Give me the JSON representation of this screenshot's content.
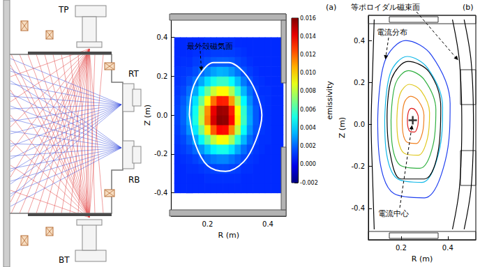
{
  "diagram": {
    "ports": [
      "TP",
      "RT",
      "RB",
      "BT"
    ]
  },
  "chart_data": [
    {
      "type": "heatmap",
      "title": "(a)",
      "xlabel": "R (m)",
      "ylabel": "Z (m)",
      "xlim": [
        0.08,
        0.46
      ],
      "ylim": [
        -0.52,
        0.52
      ],
      "xticks": [
        0.2,
        0.4
      ],
      "yticks": [
        -0.4,
        -0.2,
        {
          "value": 0,
          "label": "0.0"
        },
        0.2,
        0.4
      ],
      "cells": {
        "r": [
          0.1,
          0.12,
          0.14,
          0.16,
          0.18,
          0.2,
          0.22,
          0.24,
          0.26,
          0.28,
          0.3,
          0.32,
          0.34,
          0.36,
          0.38,
          0.4,
          0.42,
          0.44
        ],
        "z": [
          -0.375,
          -0.325,
          -0.275,
          -0.225,
          -0.175,
          -0.125,
          -0.075,
          -0.025,
          0.025,
          0.075,
          0.125,
          0.175,
          0.225,
          0.275,
          0.325,
          0.375
        ],
        "values": [
          [
            0.001,
            0.001,
            0.001,
            0.001,
            0.001,
            0.001,
            0.001,
            0.001,
            0.001,
            0.001,
            0.001,
            0.001,
            0.001,
            0.001,
            0.001,
            0.001,
            0.001,
            0.001
          ],
          [
            0.001,
            0.001,
            0.001,
            0.001,
            0.001,
            0.0011,
            0.0011,
            0.0011,
            0.0011,
            0.0011,
            0.0011,
            0.001,
            0.001,
            0.001,
            0.001,
            0.001,
            0.001,
            0.001
          ],
          [
            0.001,
            0.001,
            0.0011,
            0.0011,
            0.0012,
            0.0013,
            0.0014,
            0.0015,
            0.0015,
            0.0014,
            0.0013,
            0.0011,
            0.0011,
            0.001,
            0.001,
            0.001,
            0.001,
            0.001
          ],
          [
            0.001,
            0.0011,
            0.0012,
            0.0014,
            0.0017,
            0.0021,
            0.0024,
            0.0026,
            0.0026,
            0.0023,
            0.0019,
            0.0015,
            0.0012,
            0.0011,
            0.001,
            0.001,
            0.001,
            0.001
          ],
          [
            0.0011,
            0.0013,
            0.0016,
            0.0021,
            0.0029,
            0.0038,
            0.0046,
            0.0051,
            0.0051,
            0.0043,
            0.0032,
            0.0022,
            0.0016,
            0.0012,
            0.0011,
            0.001,
            0.001,
            0.001
          ],
          [
            0.0012,
            0.0015,
            0.0021,
            0.0032,
            0.0047,
            0.0065,
            0.0082,
            0.0092,
            0.0091,
            0.0077,
            0.0055,
            0.0035,
            0.0021,
            0.0014,
            0.0011,
            0.0011,
            0.001,
            0.001
          ],
          [
            0.0013,
            0.0018,
            0.0028,
            0.0044,
            0.0068,
            0.0096,
            0.0122,
            0.0137,
            0.0136,
            0.0114,
            0.008,
            0.0049,
            0.0028,
            0.0017,
            0.0012,
            0.0011,
            0.001,
            0.001
          ],
          [
            0.0014,
            0.002,
            0.0032,
            0.0052,
            0.0081,
            0.0115,
            0.0145,
            0.0158,
            0.0157,
            0.0137,
            0.0095,
            0.0058,
            0.0032,
            0.0018,
            0.0012,
            0.0011,
            0.001,
            0.001
          ],
          [
            0.0014,
            0.002,
            0.0031,
            0.005,
            0.0079,
            0.0112,
            0.0141,
            0.0155,
            0.0154,
            0.0133,
            0.0093,
            0.0056,
            0.0031,
            0.0018,
            0.0012,
            0.0011,
            0.001,
            0.001
          ],
          [
            0.0013,
            0.0018,
            0.0027,
            0.0043,
            0.0066,
            0.0093,
            0.0118,
            0.0133,
            0.0132,
            0.011,
            0.0077,
            0.0047,
            0.0027,
            0.0016,
            0.0012,
            0.0011,
            0.001,
            0.001
          ],
          [
            0.0012,
            0.0015,
            0.0022,
            0.0032,
            0.0048,
            0.0066,
            0.0083,
            0.0093,
            0.0093,
            0.0078,
            0.0056,
            0.0035,
            0.0022,
            0.0014,
            0.0011,
            0.0011,
            0.001,
            0.001
          ],
          [
            0.0011,
            0.0013,
            0.0017,
            0.0023,
            0.0032,
            0.0042,
            0.0051,
            0.0057,
            0.0057,
            0.0048,
            0.0036,
            0.0024,
            0.0017,
            0.0012,
            0.0011,
            0.001,
            0.001,
            0.001
          ],
          [
            0.0011,
            0.0012,
            0.0013,
            0.0016,
            0.0021,
            0.0026,
            0.0031,
            0.0034,
            0.0033,
            0.0029,
            0.0023,
            0.0017,
            0.0013,
            0.0011,
            0.001,
            0.001,
            0.001,
            0.001
          ],
          [
            0.001,
            0.0011,
            0.0011,
            0.0013,
            0.0014,
            0.0016,
            0.0018,
            0.0019,
            0.0019,
            0.0018,
            0.0015,
            0.0013,
            0.0011,
            0.001,
            0.001,
            0.001,
            0.001,
            0.001
          ],
          [
            0.001,
            0.001,
            0.001,
            0.0011,
            0.0011,
            0.0012,
            0.0013,
            0.0013,
            0.0013,
            0.0013,
            0.0012,
            0.0011,
            0.001,
            0.001,
            0.001,
            0.001,
            0.001,
            0.001
          ],
          [
            0.001,
            0.001,
            0.001,
            0.001,
            0.001,
            0.0011,
            0.0011,
            0.0011,
            0.0011,
            0.0011,
            0.001,
            0.001,
            0.001,
            0.001,
            0.001,
            0.001,
            0.001,
            0.001
          ]
        ]
      },
      "colorbar": {
        "label": "emissivity",
        "lim": [
          -0.002,
          0.016
        ],
        "ticks": [
          -0.002,
          {
            "value": 0,
            "label": "0.000"
          },
          0.002,
          0.004,
          0.006,
          0.008,
          {
            "value": 0.01,
            "label": "0.010"
          },
          0.012,
          0.014,
          0.016
        ]
      },
      "series": [
        {
          "type": "line",
          "color": "#ffffff",
          "x": [
            0.14,
            0.15,
            0.18,
            0.22,
            0.27,
            0.32,
            0.36,
            0.38,
            0.36,
            0.32,
            0.26,
            0.2,
            0.16,
            0.14
          ],
          "values": [
            0.0,
            0.13,
            0.22,
            0.27,
            0.27,
            0.22,
            0.12,
            0.0,
            -0.13,
            -0.24,
            -0.29,
            -0.26,
            -0.15,
            0.0
          ]
        }
      ],
      "annotations": [
        "最外殻磁気面"
      ]
    },
    {
      "type": "line",
      "title": "(b)",
      "xlabel": "R (m)",
      "ylabel": "Z (m)",
      "xlim": [
        0.06,
        0.52
      ],
      "ylim": [
        -0.55,
        0.52
      ],
      "xticks": [
        0.2,
        0.4
      ],
      "yticks": [
        -0.4,
        -0.2,
        {
          "value": 0,
          "label": "0.0"
        },
        0.2,
        0.4
      ],
      "series": [
        {
          "type": "line",
          "color": "#2040f0",
          "x": [
            0.1,
            0.13,
            0.22,
            0.33,
            0.41,
            0.39,
            0.3,
            0.17,
            0.11,
            0.1
          ],
          "values": [
            0.02,
            0.3,
            0.4,
            0.33,
            0.1,
            -0.17,
            -0.35,
            -0.33,
            -0.18,
            0.02
          ]
        },
        {
          "type": "line",
          "color": "#10b8e8",
          "x": [
            0.13,
            0.154,
            0.226,
            0.314,
            0.378,
            0.362,
            0.29,
            0.186,
            0.138,
            0.13
          ],
          "values": [
            0.02,
            0.244,
            0.324,
            0.268,
            0.084,
            -0.132,
            -0.276,
            -0.26,
            -0.14,
            0.02
          ]
        },
        {
          "type": "line",
          "color": "#30b040",
          "x": [
            0.157,
            0.176,
            0.231,
            0.3,
            0.349,
            0.337,
            0.281,
            0.2,
            0.163,
            0.157
          ],
          "values": [
            0.02,
            0.194,
            0.256,
            0.212,
            0.07,
            -0.098,
            -0.209,
            -0.197,
            -0.104,
            0.02
          ]
        },
        {
          "type": "line",
          "color": "#e0c820",
          "x": [
            0.182,
            0.196,
            0.236,
            0.286,
            0.322,
            0.313,
            0.273,
            0.214,
            0.187,
            0.182
          ],
          "values": [
            0.02,
            0.146,
            0.191,
            0.16,
            0.056,
            -0.066,
            -0.147,
            -0.138,
            -0.07,
            0.02
          ]
        },
        {
          "type": "line",
          "color": "#f08020",
          "x": [
            0.205,
            0.214,
            0.241,
            0.274,
            0.298,
            0.292,
            0.265,
            0.226,
            0.208,
            0.205
          ],
          "values": [
            0.02,
            0.104,
            0.134,
            0.113,
            0.044,
            -0.037,
            -0.091,
            -0.085,
            -0.04,
            0.02
          ]
        },
        {
          "type": "line",
          "color": "#e02020",
          "x": [
            0.227,
            0.232,
            0.245,
            0.262,
            0.274,
            0.271,
            0.258,
            0.238,
            0.229,
            0.227
          ],
          "values": [
            0.02,
            0.062,
            0.077,
            0.067,
            0.032,
            -0.009,
            -0.036,
            -0.033,
            -0.01,
            0.02
          ]
        },
        {
          "type": "line",
          "color": "#000000",
          "x": [
            0.14,
            0.16,
            0.23,
            0.32,
            0.37,
            0.36,
            0.3,
            0.2,
            0.15,
            0.14
          ],
          "values": [
            0.04,
            0.22,
            0.3,
            0.25,
            0.08,
            -0.12,
            -0.26,
            -0.26,
            -0.12,
            0.04
          ]
        },
        {
          "type": "line",
          "color": "#000000",
          "x": [
            0.085,
            0.078,
            0.072,
            0.078,
            0.085
          ],
          "values": [
            0.5,
            0.25,
            0,
            -0.25,
            -0.5
          ]
        },
        {
          "type": "line",
          "color": "#000000",
          "x": [
            0.42,
            0.45,
            0.46,
            0.45,
            0.42
          ],
          "values": [
            0.5,
            0.3,
            0,
            -0.3,
            -0.5
          ]
        },
        {
          "type": "line",
          "color": "#000000",
          "x": [
            0.47,
            0.5,
            0.51,
            0.5,
            0.47
          ],
          "values": [
            0.5,
            0.3,
            0,
            -0.3,
            -0.5
          ]
        },
        {
          "type": "scatter",
          "marker": "+",
          "color": "#000000",
          "x": [
            0.25
          ],
          "values": [
            0.02
          ]
        }
      ],
      "annotations": [
        "等ポロイダル磁束面",
        "電流分布",
        "電流中心"
      ]
    }
  ]
}
